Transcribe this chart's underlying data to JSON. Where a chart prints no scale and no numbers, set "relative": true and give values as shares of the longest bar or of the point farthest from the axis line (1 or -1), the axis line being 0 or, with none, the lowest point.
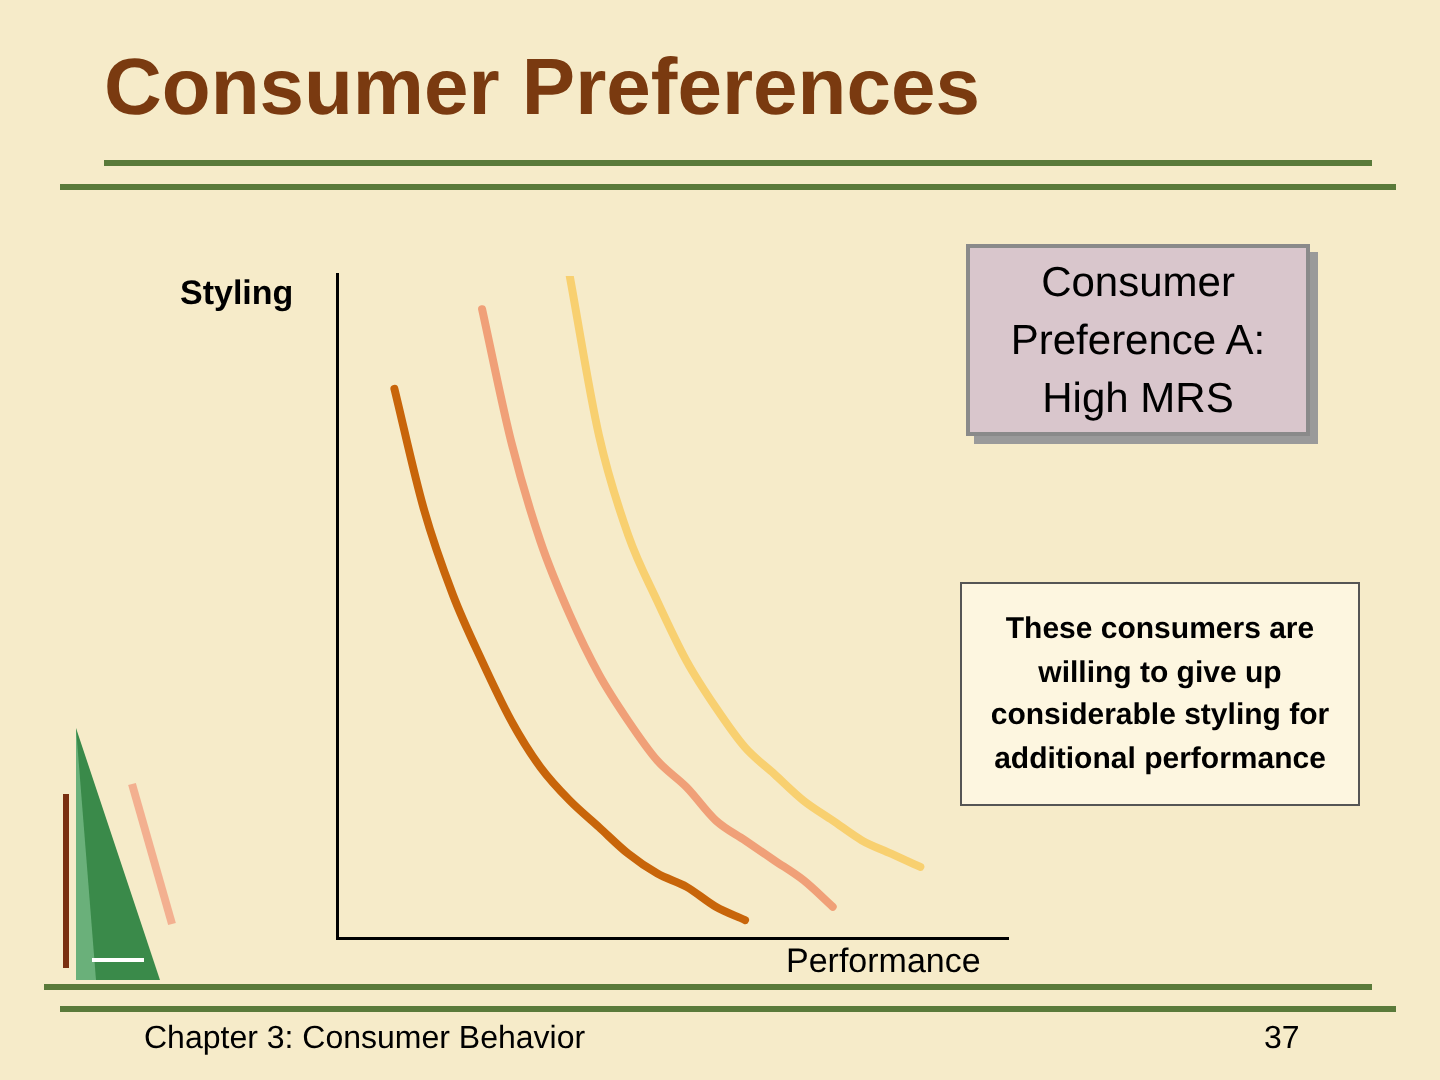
{
  "chart_data": {
    "type": "line",
    "title": "Consumer Preferences",
    "xlabel": "Performance",
    "ylabel": "Styling",
    "relative": true,
    "marker": "none",
    "line_style": "solid",
    "categories": [
      null,
      null,
      null,
      null,
      null,
      null,
      null,
      null,
      null,
      null,
      null,
      null,
      null,
      null,
      null,
      null,
      null,
      null,
      null,
      null,
      null,
      null,
      null,
      null
    ],
    "series": [
      {
        "color": "#c8650a",
        "values": [
          null,
          null,
          0.83,
          0.65,
          0.52,
          0.42,
          0.33,
          0.26,
          0.21,
          0.17,
          0.13,
          0.1,
          0.08,
          0.05,
          0.03,
          null,
          null,
          null,
          null,
          null,
          null,
          null,
          null,
          null
        ]
      },
      {
        "color": "#f0a078",
        "values": [
          null,
          null,
          null,
          null,
          null,
          0.95,
          0.75,
          0.6,
          0.49,
          0.4,
          0.33,
          0.27,
          0.23,
          0.18,
          0.15,
          0.12,
          0.09,
          0.05,
          null,
          null,
          null,
          null,
          null,
          null
        ]
      },
      {
        "color": "#f8d070",
        "values": [
          null,
          null,
          null,
          null,
          null,
          null,
          null,
          null,
          1,
          0.76,
          0.61,
          0.51,
          0.42,
          0.35,
          0.29,
          0.25,
          0.21,
          0.18,
          0.15,
          0.13,
          0.11,
          null,
          null,
          null
        ]
      }
    ],
    "annotations": [
      "Consumer Preference A: High MRS",
      "These consumers are willing to give up considerable styling for additional performance",
      "Chapter 3: Consumer Behavior",
      "37"
    ]
  }
}
